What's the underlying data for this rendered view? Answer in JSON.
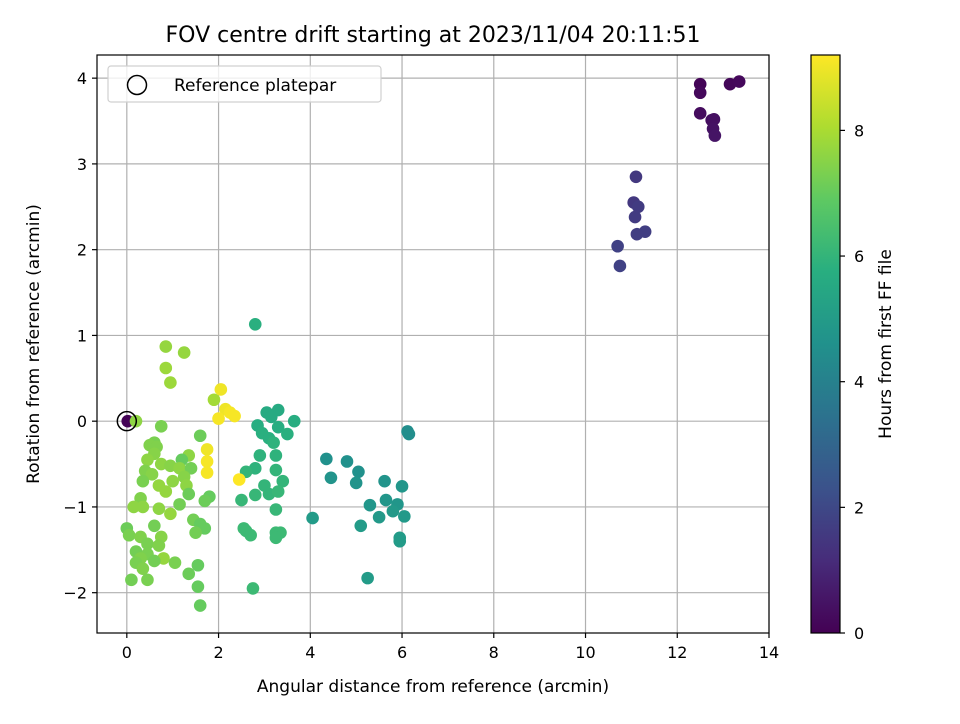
{
  "chart_data": {
    "type": "scatter",
    "title": "FOV centre drift starting at 2023/11/04 20:11:51",
    "xlabel": "Angular distance from reference (arcmin)",
    "ylabel": "Rotation from reference (arcmin)",
    "xlim": [
      -0.65,
      14
    ],
    "ylim": [
      -2.47,
      4.27
    ],
    "xticks": [
      0,
      2,
      4,
      6,
      8,
      10,
      12,
      14
    ],
    "yticks": [
      -2,
      -1,
      0,
      1,
      2,
      3,
      4
    ],
    "xtick_labels": [
      "0",
      "2",
      "4",
      "6",
      "8",
      "10",
      "12",
      "14"
    ],
    "ytick_labels": [
      "−2",
      "−1",
      "0",
      "1",
      "2",
      "3",
      "4"
    ],
    "grid": true,
    "legend": {
      "position": "top-left",
      "entries": [
        "Reference platepar"
      ]
    },
    "reference_point": {
      "x": 0,
      "y": 0
    },
    "colorbar": {
      "label": "Hours from first FF file",
      "colormap": "viridis",
      "range": [
        0,
        9.2
      ],
      "ticks": [
        0,
        2,
        4,
        6,
        8
      ],
      "tick_labels": [
        "0",
        "2",
        "4",
        "6",
        "8"
      ]
    },
    "points": [
      {
        "x": 0.02,
        "y": 0.0,
        "c": 0.05
      },
      {
        "x": 12.5,
        "y": 3.93,
        "c": 0.1
      },
      {
        "x": 12.5,
        "y": 3.83,
        "c": 0.2
      },
      {
        "x": 13.15,
        "y": 3.93,
        "c": 0.15
      },
      {
        "x": 13.35,
        "y": 3.96,
        "c": 0.2
      },
      {
        "x": 12.5,
        "y": 3.59,
        "c": 0.3
      },
      {
        "x": 12.75,
        "y": 3.51,
        "c": 0.35
      },
      {
        "x": 12.8,
        "y": 3.52,
        "c": 0.4
      },
      {
        "x": 12.78,
        "y": 3.41,
        "c": 0.45
      },
      {
        "x": 12.82,
        "y": 3.33,
        "c": 0.5
      },
      {
        "x": 11.1,
        "y": 2.85,
        "c": 1.5
      },
      {
        "x": 11.05,
        "y": 2.55,
        "c": 1.5
      },
      {
        "x": 11.15,
        "y": 2.5,
        "c": 1.6
      },
      {
        "x": 11.08,
        "y": 2.38,
        "c": 1.6
      },
      {
        "x": 11.3,
        "y": 2.21,
        "c": 1.7
      },
      {
        "x": 11.12,
        "y": 2.18,
        "c": 1.7
      },
      {
        "x": 10.7,
        "y": 2.04,
        "c": 1.8
      },
      {
        "x": 10.75,
        "y": 1.81,
        "c": 1.8
      },
      {
        "x": 6.12,
        "y": -0.12,
        "c": 4.5
      },
      {
        "x": 6.15,
        "y": -0.15,
        "c": 4.5
      },
      {
        "x": 4.35,
        "y": -0.44,
        "c": 4.6
      },
      {
        "x": 4.8,
        "y": -0.47,
        "c": 4.6
      },
      {
        "x": 5.05,
        "y": -0.59,
        "c": 4.6
      },
      {
        "x": 4.45,
        "y": -0.66,
        "c": 4.7
      },
      {
        "x": 5.0,
        "y": -0.72,
        "c": 4.7
      },
      {
        "x": 5.62,
        "y": -0.7,
        "c": 4.7
      },
      {
        "x": 6.0,
        "y": -0.76,
        "c": 4.8
      },
      {
        "x": 5.65,
        "y": -0.92,
        "c": 4.8
      },
      {
        "x": 5.3,
        "y": -0.98,
        "c": 4.8
      },
      {
        "x": 5.9,
        "y": -0.97,
        "c": 4.8
      },
      {
        "x": 5.8,
        "y": -1.05,
        "c": 4.9
      },
      {
        "x": 5.5,
        "y": -1.12,
        "c": 4.9
      },
      {
        "x": 6.05,
        "y": -1.11,
        "c": 4.9
      },
      {
        "x": 4.05,
        "y": -1.13,
        "c": 5.0
      },
      {
        "x": 5.1,
        "y": -1.22,
        "c": 5.0
      },
      {
        "x": 5.95,
        "y": -1.36,
        "c": 5.0
      },
      {
        "x": 5.95,
        "y": -1.4,
        "c": 5.0
      },
      {
        "x": 5.25,
        "y": -1.83,
        "c": 5.0
      },
      {
        "x": 2.8,
        "y": 1.13,
        "c": 5.8
      },
      {
        "x": 3.05,
        "y": 0.1,
        "c": 5.6
      },
      {
        "x": 3.3,
        "y": 0.13,
        "c": 5.6
      },
      {
        "x": 3.15,
        "y": 0.05,
        "c": 5.6
      },
      {
        "x": 3.65,
        "y": 0.0,
        "c": 5.7
      },
      {
        "x": 2.85,
        "y": -0.05,
        "c": 5.7
      },
      {
        "x": 3.3,
        "y": -0.07,
        "c": 5.7
      },
      {
        "x": 2.95,
        "y": -0.14,
        "c": 5.8
      },
      {
        "x": 3.5,
        "y": -0.15,
        "c": 5.8
      },
      {
        "x": 3.1,
        "y": -0.2,
        "c": 5.8
      },
      {
        "x": 3.2,
        "y": -0.25,
        "c": 5.9
      },
      {
        "x": 2.9,
        "y": -0.4,
        "c": 5.9
      },
      {
        "x": 3.25,
        "y": -0.4,
        "c": 5.9
      },
      {
        "x": 2.8,
        "y": -0.55,
        "c": 5.9
      },
      {
        "x": 2.6,
        "y": -0.59,
        "c": 6.0
      },
      {
        "x": 3.25,
        "y": -0.57,
        "c": 6.0
      },
      {
        "x": 3.4,
        "y": -0.7,
        "c": 6.0
      },
      {
        "x": 3.0,
        "y": -0.75,
        "c": 6.0
      },
      {
        "x": 3.1,
        "y": -0.85,
        "c": 6.0
      },
      {
        "x": 2.8,
        "y": -0.86,
        "c": 6.1
      },
      {
        "x": 3.3,
        "y": -0.82,
        "c": 6.1
      },
      {
        "x": 2.5,
        "y": -0.92,
        "c": 6.1
      },
      {
        "x": 3.25,
        "y": -1.03,
        "c": 6.1
      },
      {
        "x": 2.55,
        "y": -1.25,
        "c": 6.2
      },
      {
        "x": 2.6,
        "y": -1.28,
        "c": 6.2
      },
      {
        "x": 3.25,
        "y": -1.3,
        "c": 6.2
      },
      {
        "x": 3.35,
        "y": -1.3,
        "c": 6.2
      },
      {
        "x": 3.25,
        "y": -1.36,
        "c": 6.2
      },
      {
        "x": 2.7,
        "y": -1.33,
        "c": 6.2
      },
      {
        "x": 2.75,
        "y": -1.95,
        "c": 6.2
      },
      {
        "x": 0.2,
        "y": 0.0,
        "c": 7.6
      },
      {
        "x": 0.85,
        "y": 0.87,
        "c": 7.7
      },
      {
        "x": 1.25,
        "y": 0.8,
        "c": 7.7
      },
      {
        "x": 0.85,
        "y": 0.62,
        "c": 7.8
      },
      {
        "x": 0.95,
        "y": 0.45,
        "c": 7.8
      },
      {
        "x": 1.9,
        "y": 0.25,
        "c": 7.9
      },
      {
        "x": 0.75,
        "y": -0.06,
        "c": 7.3
      },
      {
        "x": 1.6,
        "y": -0.17,
        "c": 7.1
      },
      {
        "x": 0.6,
        "y": -0.25,
        "c": 7.3
      },
      {
        "x": 0.5,
        "y": -0.28,
        "c": 7.4
      },
      {
        "x": 0.65,
        "y": -0.3,
        "c": 7.4
      },
      {
        "x": 0.6,
        "y": -0.38,
        "c": 7.5
      },
      {
        "x": 1.35,
        "y": -0.4,
        "c": 7.6
      },
      {
        "x": 1.2,
        "y": -0.45,
        "c": 7.0
      },
      {
        "x": 0.45,
        "y": -0.45,
        "c": 7.6
      },
      {
        "x": 0.75,
        "y": -0.5,
        "c": 7.6
      },
      {
        "x": 0.95,
        "y": -0.52,
        "c": 7.5
      },
      {
        "x": 1.15,
        "y": -0.55,
        "c": 7.6
      },
      {
        "x": 1.4,
        "y": -0.55,
        "c": 7.2
      },
      {
        "x": 0.4,
        "y": -0.58,
        "c": 7.4
      },
      {
        "x": 0.55,
        "y": -0.62,
        "c": 7.5
      },
      {
        "x": 1.25,
        "y": -0.65,
        "c": 7.5
      },
      {
        "x": 0.35,
        "y": -0.7,
        "c": 7.3
      },
      {
        "x": 1.0,
        "y": -0.7,
        "c": 7.6
      },
      {
        "x": 0.7,
        "y": -0.75,
        "c": 7.7
      },
      {
        "x": 1.3,
        "y": -0.75,
        "c": 7.6
      },
      {
        "x": 0.85,
        "y": -0.82,
        "c": 7.7
      },
      {
        "x": 1.35,
        "y": -0.85,
        "c": 7.1
      },
      {
        "x": 1.8,
        "y": -0.88,
        "c": 7.0
      },
      {
        "x": 0.3,
        "y": -0.9,
        "c": 7.4
      },
      {
        "x": 1.7,
        "y": -0.93,
        "c": 7.1
      },
      {
        "x": 1.15,
        "y": -0.97,
        "c": 7.2
      },
      {
        "x": 0.15,
        "y": -1.0,
        "c": 7.6
      },
      {
        "x": 0.35,
        "y": -1.0,
        "c": 7.6
      },
      {
        "x": 0.7,
        "y": -1.02,
        "c": 7.6
      },
      {
        "x": 0.95,
        "y": -1.08,
        "c": 7.7
      },
      {
        "x": 1.45,
        "y": -1.15,
        "c": 7.2
      },
      {
        "x": 1.6,
        "y": -1.2,
        "c": 7.0
      },
      {
        "x": 0.0,
        "y": -1.25,
        "c": 7.1
      },
      {
        "x": 0.6,
        "y": -1.22,
        "c": 7.2
      },
      {
        "x": 1.7,
        "y": -1.25,
        "c": 7.0
      },
      {
        "x": 1.5,
        "y": -1.3,
        "c": 7.2
      },
      {
        "x": 0.05,
        "y": -1.33,
        "c": 7.3
      },
      {
        "x": 0.3,
        "y": -1.35,
        "c": 7.4
      },
      {
        "x": 0.75,
        "y": -1.35,
        "c": 7.5
      },
      {
        "x": 0.45,
        "y": -1.43,
        "c": 7.3
      },
      {
        "x": 0.7,
        "y": -1.45,
        "c": 7.4
      },
      {
        "x": 0.2,
        "y": -1.52,
        "c": 7.2
      },
      {
        "x": 0.45,
        "y": -1.55,
        "c": 7.3
      },
      {
        "x": 0.8,
        "y": -1.6,
        "c": 7.7
      },
      {
        "x": 0.3,
        "y": -1.6,
        "c": 7.4
      },
      {
        "x": 0.2,
        "y": -1.65,
        "c": 7.3
      },
      {
        "x": 0.6,
        "y": -1.63,
        "c": 7.2
      },
      {
        "x": 1.05,
        "y": -1.65,
        "c": 7.3
      },
      {
        "x": 1.55,
        "y": -1.68,
        "c": 7.0
      },
      {
        "x": 0.35,
        "y": -1.72,
        "c": 7.4
      },
      {
        "x": 1.35,
        "y": -1.78,
        "c": 7.1
      },
      {
        "x": 0.45,
        "y": -1.85,
        "c": 7.3
      },
      {
        "x": 0.1,
        "y": -1.85,
        "c": 7.2
      },
      {
        "x": 1.55,
        "y": -1.93,
        "c": 7.0
      },
      {
        "x": 1.6,
        "y": -2.15,
        "c": 7.0
      },
      {
        "x": 2.05,
        "y": 0.37,
        "c": 9.0
      },
      {
        "x": 2.15,
        "y": 0.14,
        "c": 9.0
      },
      {
        "x": 2.25,
        "y": 0.1,
        "c": 9.1
      },
      {
        "x": 2.0,
        "y": 0.03,
        "c": 9.1
      },
      {
        "x": 2.35,
        "y": 0.06,
        "c": 9.1
      },
      {
        "x": 1.75,
        "y": -0.33,
        "c": 9.0
      },
      {
        "x": 1.75,
        "y": -0.47,
        "c": 9.1
      },
      {
        "x": 1.75,
        "y": -0.6,
        "c": 9.1
      },
      {
        "x": 2.45,
        "y": -0.68,
        "c": 9.2
      }
    ]
  }
}
